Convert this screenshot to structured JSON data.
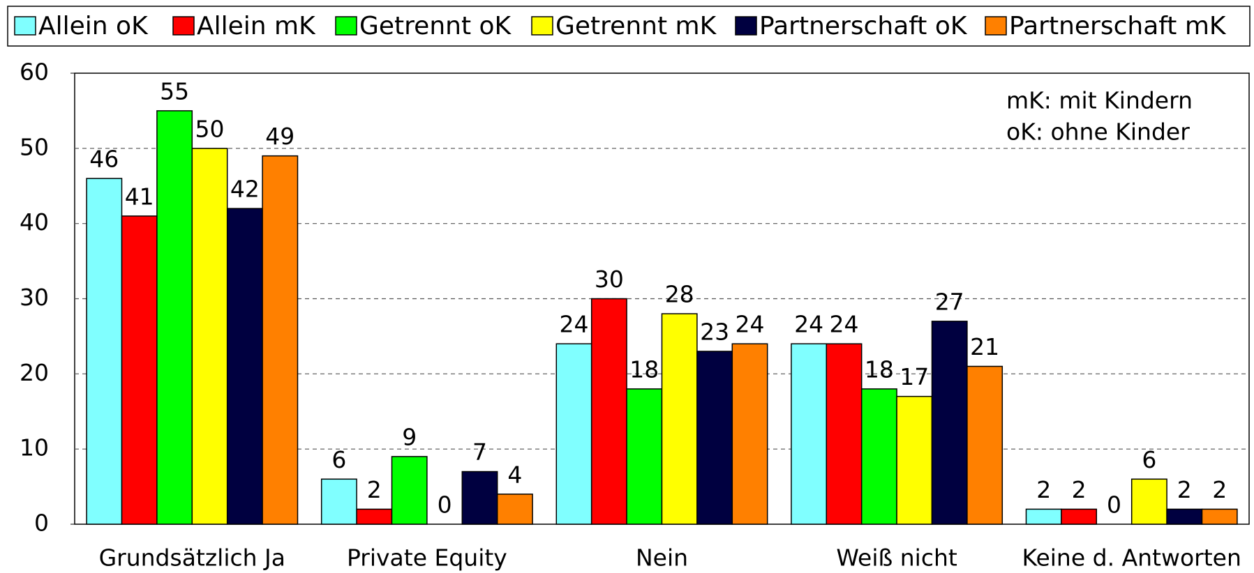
{
  "chart_data": {
    "type": "bar",
    "categories": [
      "Grundsätzlich Ja",
      "Private Equity",
      "Nein",
      "Weiß nicht",
      "Keine d. Antworten"
    ],
    "series": [
      {
        "name": "Allein oK",
        "color": "#80ffff",
        "values": [
          46,
          6,
          24,
          24,
          2
        ]
      },
      {
        "name": "Allein mK",
        "color": "#ff0000",
        "values": [
          41,
          2,
          30,
          24,
          2
        ]
      },
      {
        "name": "Getrennt oK",
        "color": "#00ff00",
        "values": [
          55,
          9,
          18,
          18,
          0
        ]
      },
      {
        "name": "Getrennt mK",
        "color": "#ffff00",
        "values": [
          50,
          0,
          28,
          17,
          6
        ]
      },
      {
        "name": "Partnerschaft oK",
        "color": "#000040",
        "values": [
          42,
          7,
          23,
          27,
          2
        ]
      },
      {
        "name": "Partnerschaft mK",
        "color": "#ff8000",
        "values": [
          49,
          4,
          24,
          21,
          2
        ]
      }
    ],
    "annotations": [
      "mK: mit Kindern",
      "oK: ohne Kinder"
    ],
    "ylim": [
      0,
      60
    ],
    "yticks": [
      0,
      10,
      20,
      30,
      40,
      50,
      60
    ],
    "grid": true
  }
}
